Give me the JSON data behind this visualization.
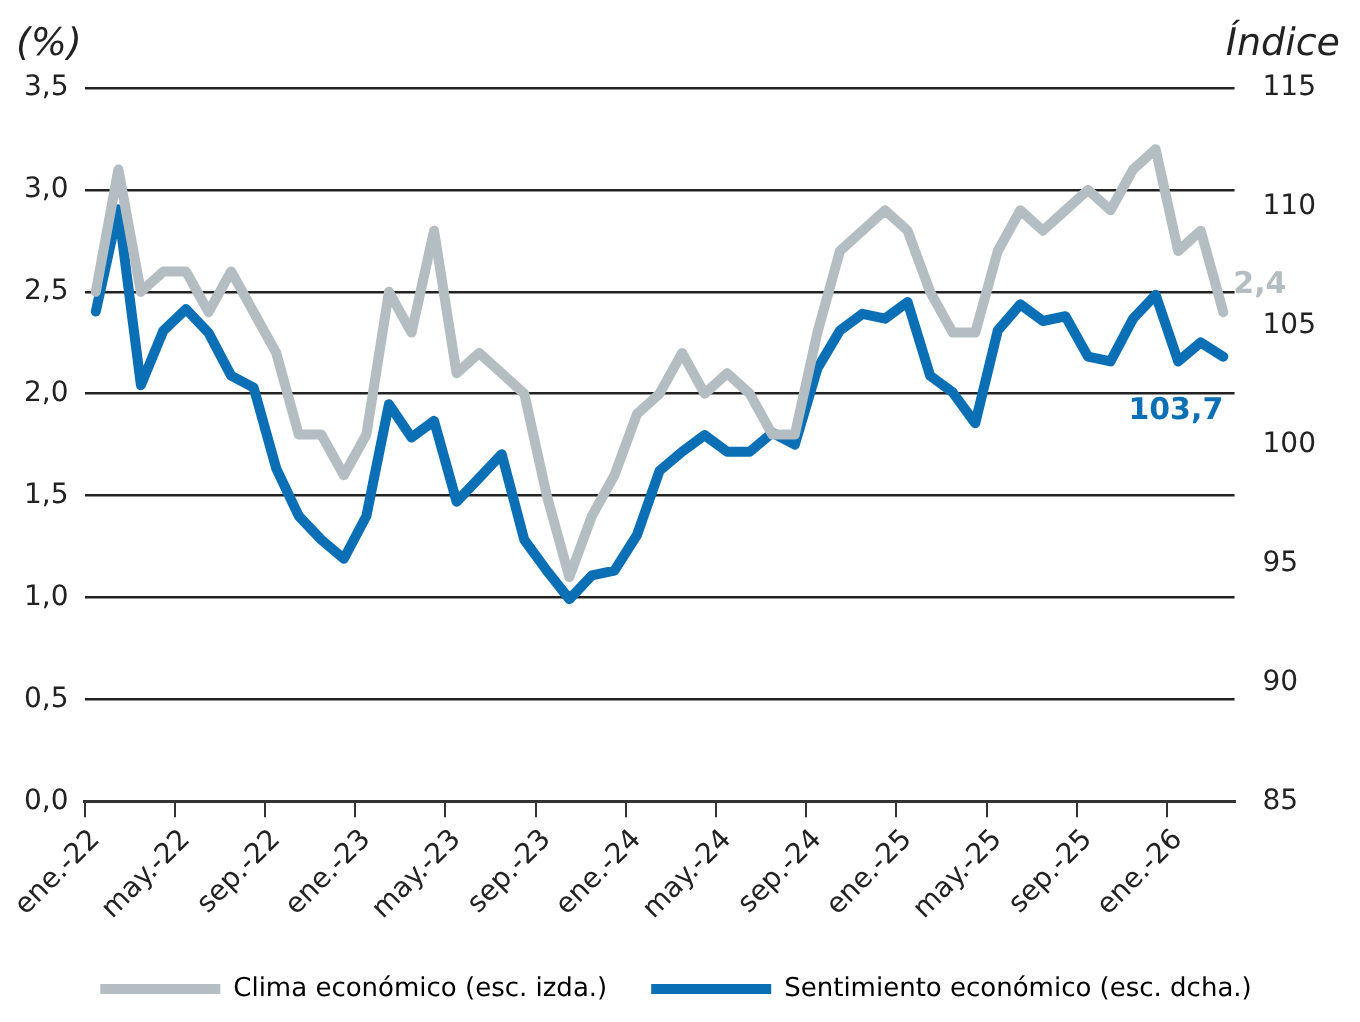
{
  "chart_data": {
    "type": "line",
    "ylabel": "(%)",
    "y2label": "Índice",
    "categories": [
      "ene.-22",
      null,
      null,
      null,
      "may.-22",
      null,
      null,
      null,
      "sep.-22",
      null,
      null,
      null,
      "ene.-23",
      null,
      null,
      null,
      "may.-23",
      null,
      null,
      null,
      "sep.-23",
      null,
      null,
      null,
      "ene.-24",
      null,
      null,
      null,
      "may.-24",
      null,
      null,
      null,
      "sep.-24",
      null,
      null,
      null,
      "ene.-25",
      null,
      null,
      null,
      "may.-25",
      null,
      null,
      null,
      "sep.-25",
      null,
      null,
      null,
      "ene.-26",
      null,
      null
    ],
    "series": [
      {
        "name": "Clima económico (esc. izda.)",
        "color": "#b4bec2",
        "values": [
          2.5,
          3.1,
          2.5,
          2.6,
          2.6,
          2.4,
          2.6,
          2.4,
          2.2,
          1.8,
          1.8,
          1.6,
          1.8,
          2.5,
          2.3,
          2.8,
          2.1,
          2.2,
          2.1,
          2.0,
          1.5,
          1.1,
          1.4,
          1.6,
          1.9,
          2.0,
          2.2,
          2.0,
          2.1,
          2.0,
          1.8,
          1.8,
          2.3,
          2.7,
          2.8,
          2.9,
          2.8,
          2.5,
          2.3,
          2.3,
          2.7,
          2.9,
          2.8,
          2.9,
          3.0,
          2.9,
          3.1,
          3.2,
          2.7,
          2.8,
          2.4
        ],
        "value_labels": [
          null,
          null,
          null,
          null,
          null,
          null,
          null,
          null,
          null,
          null,
          null,
          null,
          null,
          null,
          null,
          null,
          null,
          null,
          null,
          null,
          null,
          null,
          null,
          null,
          null,
          null,
          null,
          null,
          null,
          null,
          null,
          null,
          null,
          null,
          null,
          null,
          null,
          null,
          null,
          null,
          null,
          null,
          null,
          null,
          null,
          null,
          null,
          null,
          null,
          null,
          "2,4"
        ]
      },
      {
        "name": "Sentimiento económico (esc. dcha.)",
        "color": "#0a6fb5",
        "axis": "y2",
        "values": [
          105.6,
          109.9,
          102.5,
          104.8,
          105.7,
          104.7,
          102.9,
          102.4,
          99.0,
          97.0,
          96.0,
          95.2,
          97.0,
          101.7,
          100.3,
          101.0,
          97.6,
          98.6,
          99.6,
          96.0,
          94.7,
          93.5,
          94.5,
          94.7,
          96.2,
          98.9,
          99.7,
          100.4,
          99.7,
          99.7,
          100.5,
          100.0,
          103.2,
          104.8,
          105.5,
          105.3,
          106.0,
          102.9,
          102.2,
          100.9,
          104.8,
          105.9,
          105.2,
          105.4,
          103.7,
          103.5,
          105.3,
          106.3,
          103.5,
          104.3,
          103.7
        ],
        "value_labels": [
          null,
          null,
          null,
          null,
          null,
          null,
          null,
          null,
          null,
          null,
          null,
          null,
          null,
          null,
          null,
          null,
          null,
          null,
          null,
          null,
          null,
          null,
          null,
          null,
          null,
          null,
          null,
          null,
          null,
          null,
          null,
          null,
          null,
          null,
          null,
          null,
          null,
          null,
          null,
          null,
          null,
          null,
          null,
          null,
          null,
          null,
          null,
          null,
          null,
          null,
          "103,7"
        ]
      }
    ],
    "ylim": [
      0,
      3.5
    ],
    "yticks": [
      {
        "value": 0,
        "label": "0,0"
      },
      {
        "value": 0.5,
        "label": "0,5"
      },
      {
        "value": 1,
        "label": "1,0"
      },
      {
        "value": 1.5,
        "label": "1,5"
      },
      {
        "value": 2,
        "label": "2,0"
      },
      {
        "value": 2.5,
        "label": "2,5"
      },
      {
        "value": 3,
        "label": "3,0"
      },
      {
        "value": 3.5,
        "label": "3,5"
      }
    ],
    "y2lim": [
      85,
      115
    ],
    "y2ticks": [
      85,
      90,
      95,
      100,
      105,
      110,
      115
    ],
    "grid": "y",
    "legend": "bottom",
    "marker": "none",
    "line_style": "solid"
  }
}
